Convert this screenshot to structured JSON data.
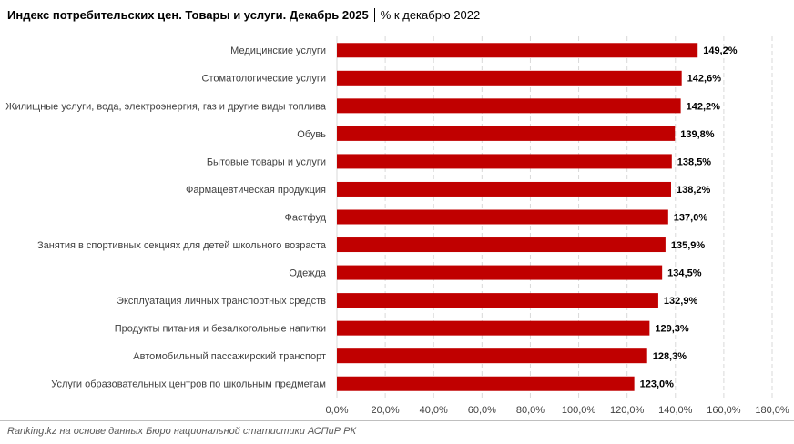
{
  "chart_data": {
    "type": "bar",
    "orientation": "horizontal",
    "title": "Индекс потребительских цен. Товары и услуги. Декабрь 2025",
    "subtitle": "% к декабрю 2022",
    "source": "Ranking.kz на основе данных Бюро национальной статистики АСПиР РК",
    "categories": [
      "Медицинские услуги",
      "Стоматологические услуги",
      "Жилищные услуги, вода, электроэнергия, газ и другие виды топлива",
      "Обувь",
      "Бытовые товары и услуги",
      "Фармацевтическая продукция",
      "Фастфуд",
      "Занятия в спортивных секциях для детей школьного возраста",
      "Одежда",
      "Эксплуатация личных транспортных средств",
      "Продукты питания и безалкогольные напитки",
      "Автомобильный пассажирский транспорт",
      "Услуги образовательных центров по школьным предметам"
    ],
    "values": [
      149.2,
      142.6,
      142.2,
      139.8,
      138.5,
      138.2,
      137.0,
      135.9,
      134.5,
      132.9,
      129.3,
      128.3,
      123.0
    ],
    "value_labels": [
      "149,2%",
      "142,6%",
      "142,2%",
      "139,8%",
      "138,5%",
      "138,2%",
      "137,0%",
      "135,9%",
      "134,5%",
      "132,9%",
      "129,3%",
      "128,3%",
      "123,0%"
    ],
    "color": "#c00000",
    "xlim": [
      0,
      180
    ],
    "xticks": [
      {
        "value": 0,
        "label": "0,0%"
      },
      {
        "value": 20,
        "label": "20,0%"
      },
      {
        "value": 40,
        "label": "40,0%"
      },
      {
        "value": 60,
        "label": "60,0%"
      },
      {
        "value": 80,
        "label": "80,0%"
      },
      {
        "value": 100,
        "label": "100,0%"
      },
      {
        "value": 120,
        "label": "120,0%"
      },
      {
        "value": 140,
        "label": "140,0%"
      },
      {
        "value": 160,
        "label": "160,0%"
      },
      {
        "value": 180,
        "label": "180,0%"
      }
    ],
    "grid": true
  }
}
